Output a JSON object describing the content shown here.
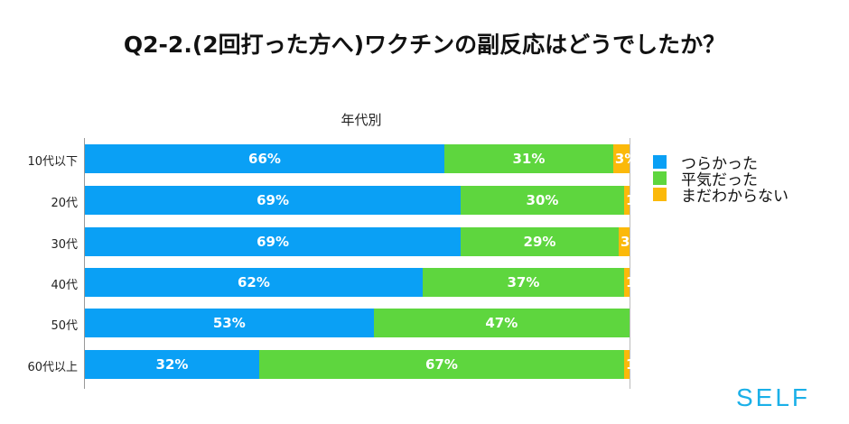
{
  "chart_data": {
    "type": "bar",
    "orientation": "horizontal-stacked-100",
    "title": "Q2-2.(2回打った方へ)ワクチンの副反応はどうでしたか？",
    "subtitle": "年代別",
    "categories": [
      "10代以下",
      "20代",
      "30代",
      "40代",
      "50代",
      "60代以上"
    ],
    "series": [
      {
        "name": "つらかった",
        "color": "#0aa0f5",
        "values": [
          66,
          69,
          69,
          62,
          53,
          32
        ]
      },
      {
        "name": "平気だった",
        "color": "#5ed63e",
        "values": [
          31,
          30,
          29,
          37,
          47,
          67
        ]
      },
      {
        "name": "まだわからない",
        "color": "#fbb90a",
        "values": [
          3,
          1,
          3,
          1,
          0,
          1
        ]
      }
    ],
    "legend_position": "right"
  },
  "logo": "SELF"
}
